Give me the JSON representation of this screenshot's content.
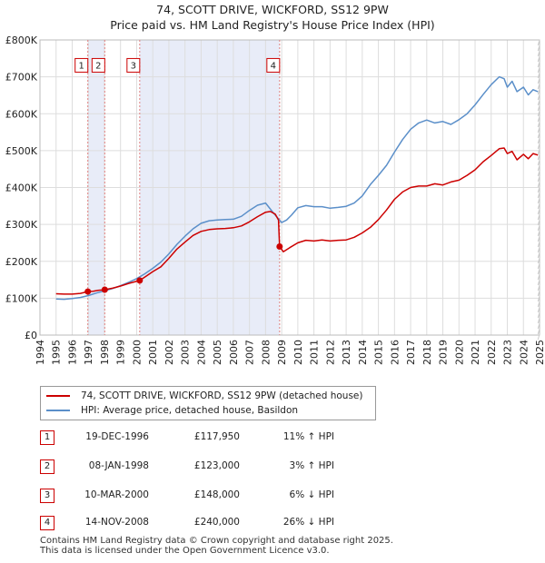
{
  "colors": {
    "property": "#cc0000",
    "hpi": "#5b8fc9",
    "shade": "#e8ecf8",
    "vline": "#e08080",
    "grid": "#dddddd"
  },
  "chart_data": {
    "type": "line",
    "title": "74, SCOTT DRIVE, WICKFORD, SS12 9PW",
    "subtitle": "Price paid vs. HM Land Registry's House Price Index (HPI)",
    "xlim": [
      1994,
      2025
    ],
    "ylim": [
      0,
      800000
    ],
    "x_ticks": [
      1994,
      1995,
      1996,
      1997,
      1998,
      1999,
      2000,
      2001,
      2002,
      2003,
      2004,
      2005,
      2006,
      2007,
      2008,
      2009,
      2010,
      2011,
      2012,
      2013,
      2014,
      2015,
      2016,
      2017,
      2018,
      2019,
      2020,
      2021,
      2022,
      2023,
      2024,
      2025
    ],
    "y_ticks": [
      0,
      100000,
      200000,
      300000,
      400000,
      500000,
      600000,
      700000,
      800000
    ],
    "y_tick_labels": [
      "£0",
      "£100K",
      "£200K",
      "£300K",
      "£400K",
      "£500K",
      "£600K",
      "£700K",
      "£800K"
    ],
    "shaded_ranges": [
      [
        1996.97,
        1998.02
      ],
      [
        2000.19,
        2008.87
      ]
    ],
    "series": [
      {
        "name": "74, SCOTT DRIVE, WICKFORD, SS12 9PW (detached house)",
        "x": [
          1995.0,
          1995.5,
          1996.0,
          1996.5,
          1996.97,
          1997.3,
          1997.6,
          1998.02,
          1998.5,
          1999.0,
          1999.5,
          2000.19,
          2000.6,
          2001.0,
          2001.5,
          2002.0,
          2002.5,
          2003.0,
          2003.5,
          2004.0,
          2004.5,
          2005.0,
          2005.5,
          2006.0,
          2006.5,
          2007.0,
          2007.5,
          2008.0,
          2008.3,
          2008.6,
          2008.8,
          2008.87,
          2009.1,
          2009.5,
          2010.0,
          2010.5,
          2011.0,
          2011.5,
          2012.0,
          2012.5,
          2013.0,
          2013.5,
          2014.0,
          2014.5,
          2015.0,
          2015.5,
          2016.0,
          2016.5,
          2017.0,
          2017.5,
          2018.0,
          2018.5,
          2019.0,
          2019.5,
          2020.0,
          2020.5,
          2021.0,
          2021.5,
          2022.0,
          2022.5,
          2022.8,
          2023.0,
          2023.3,
          2023.6,
          2024.0,
          2024.3,
          2024.6,
          2024.9
        ],
        "y": [
          112000,
          111000,
          111000,
          113000,
          117950,
          119000,
          121000,
          123000,
          127000,
          133000,
          140000,
          148000,
          160000,
          172000,
          185000,
          208000,
          233000,
          252000,
          270000,
          281000,
          286000,
          288000,
          289000,
          291000,
          296000,
          307000,
          321000,
          333000,
          335000,
          328000,
          312000,
          240000,
          226000,
          237000,
          250000,
          257000,
          255000,
          258000,
          255000,
          257000,
          258000,
          265000,
          277000,
          292000,
          313000,
          339000,
          368000,
          388000,
          400000,
          404000,
          404000,
          410000,
          407000,
          415000,
          420000,
          433000,
          448000,
          470000,
          487000,
          505000,
          507000,
          492000,
          498000,
          475000,
          490000,
          478000,
          492000,
          488000
        ]
      },
      {
        "name": "HPI: Average price, detached house, Basildon",
        "x": [
          1995.0,
          1995.5,
          1996.0,
          1996.5,
          1997.0,
          1997.5,
          1998.0,
          1998.5,
          1999.0,
          1999.5,
          2000.0,
          2000.5,
          2001.0,
          2001.5,
          2002.0,
          2002.5,
          2003.0,
          2003.5,
          2004.0,
          2004.5,
          2005.0,
          2005.5,
          2006.0,
          2006.5,
          2007.0,
          2007.5,
          2008.0,
          2008.5,
          2009.0,
          2009.3,
          2009.6,
          2010.0,
          2010.5,
          2011.0,
          2011.5,
          2012.0,
          2012.5,
          2013.0,
          2013.5,
          2014.0,
          2014.5,
          2015.0,
          2015.5,
          2016.0,
          2016.5,
          2017.0,
          2017.5,
          2018.0,
          2018.5,
          2019.0,
          2019.5,
          2020.0,
          2020.5,
          2021.0,
          2021.5,
          2022.0,
          2022.5,
          2022.8,
          2023.0,
          2023.3,
          2023.6,
          2024.0,
          2024.3,
          2024.6,
          2024.9
        ],
        "y": [
          98000,
          97000,
          99000,
          102000,
          107000,
          114000,
          120000,
          126000,
          134000,
          143000,
          153000,
          166000,
          181000,
          198000,
          220000,
          246000,
          268000,
          288000,
          303000,
          310000,
          312000,
          313000,
          314000,
          322000,
          338000,
          352000,
          358000,
          330000,
          305000,
          312000,
          325000,
          345000,
          351000,
          348000,
          348000,
          344000,
          346000,
          349000,
          358000,
          377000,
          408000,
          433000,
          460000,
          496000,
          530000,
          558000,
          575000,
          583000,
          575000,
          579000,
          571000,
          584000,
          600000,
          624000,
          652000,
          679000,
          700000,
          695000,
          672000,
          688000,
          660000,
          672000,
          651000,
          665000,
          660000
        ]
      }
    ],
    "sale_markers": [
      {
        "label": "1",
        "x": 1996.97,
        "y": 117950
      },
      {
        "label": "2",
        "x": 1998.02,
        "y": 123000
      },
      {
        "label": "3",
        "x": 2000.19,
        "y": 148000
      },
      {
        "label": "4",
        "x": 2008.87,
        "y": 240000
      }
    ]
  },
  "sales": [
    {
      "id": "1",
      "date": "19-DEC-1996",
      "price": "£117,950",
      "diff": "11% ↑ HPI"
    },
    {
      "id": "2",
      "date": "08-JAN-1998",
      "price": "£123,000",
      "diff": "3% ↑ HPI"
    },
    {
      "id": "3",
      "date": "10-MAR-2000",
      "price": "£148,000",
      "diff": "6% ↓ HPI"
    },
    {
      "id": "4",
      "date": "14-NOV-2008",
      "price": "£240,000",
      "diff": "26% ↓ HPI"
    }
  ],
  "footer": {
    "line1": "Contains HM Land Registry data © Crown copyright and database right 2025.",
    "line2": "This data is licensed under the Open Government Licence v3.0."
  }
}
